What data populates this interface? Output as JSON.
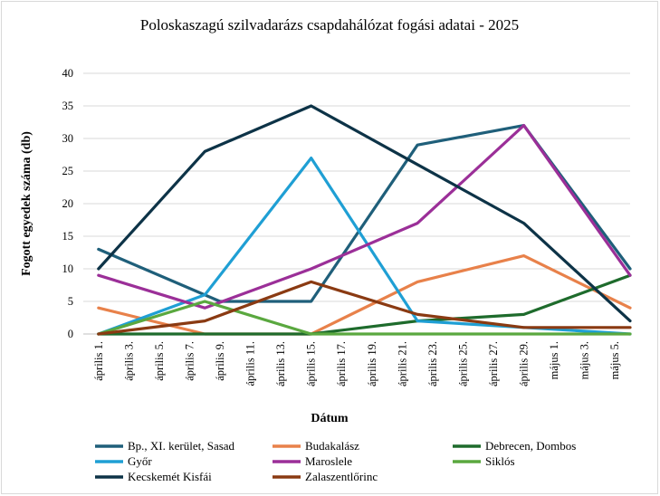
{
  "chart_data": {
    "type": "line",
    "title": "Poloskaszagú szilvadarázs csapdahálózat fogási adatai - 2025",
    "xlabel": "Dátum",
    "ylabel": "Fogott egyedek száma (db)",
    "ylim": [
      0,
      40
    ],
    "yticks": [
      0,
      5,
      10,
      15,
      20,
      25,
      30,
      35,
      40
    ],
    "grid": "horizontal",
    "legend_position": "bottom",
    "x_tick_labels": [
      "április 1.",
      "április 3.",
      "április 5.",
      "április 7.",
      "április 9.",
      "április 11.",
      "április 13.",
      "április 15.",
      "április 17.",
      "április 19.",
      "április 21.",
      "április 23.",
      "április 25.",
      "április 27.",
      "április 29.",
      "május 1.",
      "május 3.",
      "május 5."
    ],
    "series": [
      {
        "name": "Bp., XI. kerület, Sasad",
        "color": "#1f5f7a",
        "x": [
          0,
          4,
          7,
          10.5,
          14,
          17.5
        ],
        "values": [
          13,
          5,
          5,
          29,
          32,
          10
        ]
      },
      {
        "name": "Budakalász",
        "color": "#e8814a",
        "x": [
          0,
          3.5,
          7,
          10.5,
          14,
          17.5
        ],
        "values": [
          4,
          0,
          0,
          8,
          12,
          4
        ]
      },
      {
        "name": "Debrecen, Dombos",
        "color": "#1e6b2c",
        "x": [
          0,
          3.5,
          7,
          10.5,
          14,
          17.5
        ],
        "values": [
          0,
          0,
          0,
          2,
          3,
          9
        ]
      },
      {
        "name": "Győr",
        "color": "#1f9fd4",
        "x": [
          0,
          3.5,
          7,
          10.5,
          14,
          17.5
        ],
        "values": [
          0,
          6,
          27,
          2,
          1,
          0
        ]
      },
      {
        "name": "Maroslele",
        "color": "#9b2f98",
        "x": [
          0,
          3.5,
          7,
          10.5,
          14,
          17.5
        ],
        "values": [
          9,
          4,
          10,
          17,
          32,
          9
        ]
      },
      {
        "name": "Siklós",
        "color": "#5aa83f",
        "x": [
          0,
          3.5,
          7,
          10.5,
          14,
          17.5
        ],
        "values": [
          0,
          5,
          0,
          0,
          0,
          0
        ]
      },
      {
        "name": "Kecskemét Kisfái",
        "color": "#0d3347",
        "x": [
          0,
          3.5,
          7,
          10.5,
          14,
          17.5
        ],
        "values": [
          10,
          28,
          35,
          26,
          17,
          2
        ]
      },
      {
        "name": "Zalaszentlőrinc",
        "color": "#8a3a12",
        "x": [
          0,
          3.5,
          7,
          10.5,
          14,
          17.5
        ],
        "values": [
          0,
          2,
          8,
          3,
          1,
          1
        ]
      }
    ]
  }
}
